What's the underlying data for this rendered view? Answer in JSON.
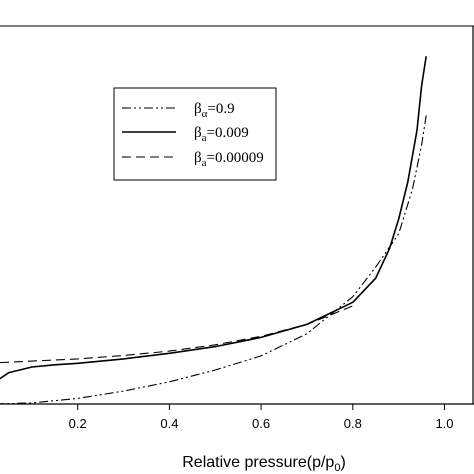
{
  "chart_data": {
    "type": "line",
    "title": "",
    "xlabel": "Relative pressure(p/p",
    "xlabel_sub": "0",
    "xlabel_close": ")",
    "ylabel": "",
    "xlim": [
      0.0,
      1.05
    ],
    "ylim": [
      0.0,
      1.0
    ],
    "x_ticks": [
      0.2,
      0.4,
      0.6,
      0.8,
      1.0
    ],
    "x_tick_labels": [
      "0.2",
      "0.4",
      "0.6",
      "0.8",
      "1.0"
    ],
    "legend_position": "upper-left",
    "grid": false,
    "series": [
      {
        "name_symbol": "β",
        "name_sub": "α",
        "name_value": "=0.9",
        "style": "dash-dot-dot",
        "x": [
          0.02,
          0.1,
          0.2,
          0.3,
          0.4,
          0.5,
          0.6,
          0.7,
          0.8,
          0.85,
          0.9,
          0.93,
          0.95,
          0.96
        ],
        "y": [
          0.0,
          0.003,
          0.015,
          0.035,
          0.06,
          0.092,
          0.13,
          0.19,
          0.29,
          0.37,
          0.46,
          0.58,
          0.7,
          0.78
        ]
      },
      {
        "name_symbol": "β",
        "name_sub": "a",
        "name_value": "=0.009",
        "style": "solid",
        "x": [
          0.0,
          0.02,
          0.05,
          0.1,
          0.15,
          0.2,
          0.3,
          0.4,
          0.5,
          0.6,
          0.7,
          0.8,
          0.85,
          0.88,
          0.9,
          0.92,
          0.94,
          0.95,
          0.96
        ],
        "y": [
          0.045,
          0.06,
          0.085,
          0.1,
          0.106,
          0.11,
          0.122,
          0.137,
          0.155,
          0.18,
          0.215,
          0.275,
          0.34,
          0.42,
          0.5,
          0.6,
          0.74,
          0.86,
          0.94
        ]
      },
      {
        "name_symbol": "β",
        "name_sub": "a",
        "name_value": "=0.00009",
        "style": "dashed",
        "x": [
          0.0,
          0.1,
          0.2,
          0.3,
          0.4,
          0.5,
          0.6,
          0.7,
          0.8
        ],
        "y": [
          0.11,
          0.116,
          0.122,
          0.131,
          0.143,
          0.16,
          0.183,
          0.215,
          0.265
        ]
      }
    ]
  }
}
